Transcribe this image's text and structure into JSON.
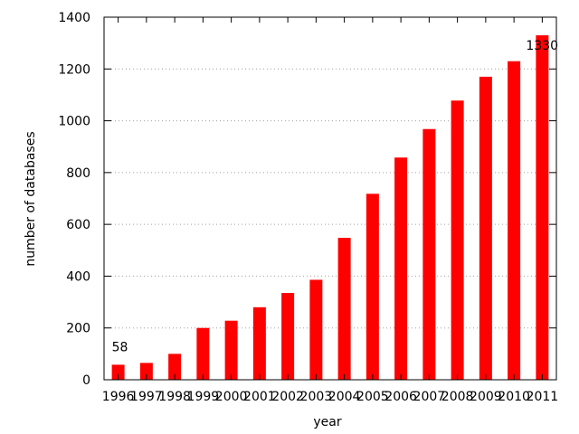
{
  "chart_data": {
    "type": "bar",
    "title": "",
    "xlabel": "year",
    "ylabel": "number of databases",
    "categories": [
      "1996",
      "1997",
      "1998",
      "1999",
      "2000",
      "2001",
      "2002",
      "2003",
      "2004",
      "2005",
      "2006",
      "2007",
      "2008",
      "2009",
      "2010",
      "2011"
    ],
    "values": [
      58,
      65,
      100,
      200,
      228,
      280,
      335,
      386,
      548,
      718,
      858,
      968,
      1078,
      1170,
      1230,
      1330
    ],
    "ylim": [
      0,
      1400
    ],
    "yticks": [
      "0",
      "200",
      "400",
      "600",
      "800",
      "1000",
      "1200",
      "1400"
    ],
    "ytick_values": [
      0,
      200,
      400,
      600,
      800,
      1000,
      1200,
      1400
    ],
    "grid": "horizontal dotted",
    "legend": "none",
    "annotations": [
      {
        "category": "1996",
        "text": "58"
      },
      {
        "category": "2011",
        "text": "1330"
      }
    ],
    "bar_color": "#ff0000",
    "grid_color": "#a0a0a0"
  }
}
